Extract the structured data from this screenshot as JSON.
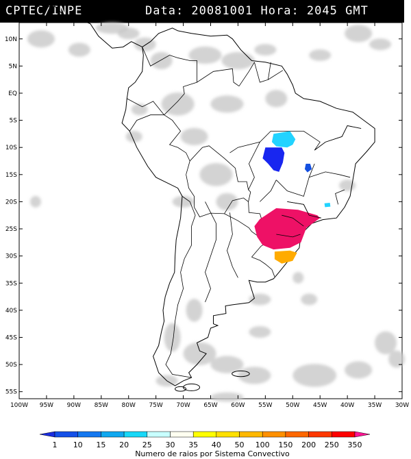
{
  "header": {
    "source": "CPTEC/INPE",
    "datetime": "Data: 20081001 Hora: 2045 GMT"
  },
  "map": {
    "lat_labels": [
      "10N",
      "5N",
      "EQ",
      "5S",
      "10S",
      "15S",
      "20S",
      "25S",
      "30S",
      "35S",
      "40S",
      "45S",
      "50S",
      "55S"
    ],
    "lon_labels": [
      "100W",
      "95W",
      "90W",
      "85W",
      "80W",
      "75W",
      "70W",
      "65W",
      "60W",
      "55W",
      "50W",
      "45W",
      "40W",
      "35W",
      "30W"
    ],
    "lat_range": [
      10,
      -55
    ],
    "lon_range": [
      -100,
      -30
    ],
    "storm_regions": [
      {
        "name": "light-blue-cell",
        "color": "#22d3ff",
        "points": [
          [
            -53.5,
            -7.5
          ],
          [
            -50.5,
            -7
          ],
          [
            -49.5,
            -8.5
          ],
          [
            -50,
            -9.5
          ],
          [
            -51,
            -10
          ],
          [
            -53,
            -9.8
          ],
          [
            -53.8,
            -9
          ]
        ]
      },
      {
        "name": "blue-cell",
        "color": "#1826f0",
        "points": [
          [
            -55,
            -10
          ],
          [
            -52,
            -10
          ],
          [
            -51.5,
            -11
          ],
          [
            -51.8,
            -12.8
          ],
          [
            -52.5,
            -14.5
          ],
          [
            -53.5,
            -14.2
          ],
          [
            -54.5,
            -13
          ],
          [
            -55.5,
            -12
          ]
        ]
      },
      {
        "name": "blue-cell-2",
        "color": "#1450e0",
        "points": [
          [
            -47.6,
            -13
          ],
          [
            -46.8,
            -13
          ],
          [
            -46.5,
            -14
          ],
          [
            -47.3,
            -14.6
          ],
          [
            -47.8,
            -14
          ]
        ]
      },
      {
        "name": "cyan-cell",
        "color": "#22d3ff",
        "points": [
          [
            -44.2,
            -20.3
          ],
          [
            -43.2,
            -20.2
          ],
          [
            -43.1,
            -20.9
          ],
          [
            -44.1,
            -21
          ]
        ]
      },
      {
        "name": "magenta-cluster",
        "color": "#ee1166",
        "points": [
          [
            -56,
            -23.2
          ],
          [
            -53,
            -21.2
          ],
          [
            -49,
            -21.5
          ],
          [
            -45.5,
            -22.5
          ],
          [
            -45,
            -23
          ],
          [
            -47.5,
            -24.8
          ],
          [
            -48.5,
            -27.5
          ],
          [
            -50.5,
            -28.5
          ],
          [
            -53.5,
            -28.8
          ],
          [
            -55.5,
            -28
          ],
          [
            -56.5,
            -26.5
          ],
          [
            -57,
            -24.5
          ]
        ]
      },
      {
        "name": "orange-cluster",
        "color": "#ffab00",
        "points": [
          [
            -53.3,
            -29.2
          ],
          [
            -50.5,
            -29
          ],
          [
            -49.2,
            -29.4
          ],
          [
            -50,
            -30.9
          ],
          [
            -52,
            -31.4
          ],
          [
            -53.3,
            -30.6
          ]
        ]
      }
    ]
  },
  "colorbar": {
    "values": [
      "1",
      "10",
      "15",
      "20",
      "25",
      "30",
      "35",
      "40",
      "50",
      "100",
      "150",
      "200",
      "250",
      "350"
    ],
    "colors": [
      "#1a2de0",
      "#1450e8",
      "#1478f0",
      "#10a8f0",
      "#18d8f8",
      "#c8ffff",
      "#fffff0",
      "#ffff00",
      "#ffe000",
      "#ffb800",
      "#ff9000",
      "#ff6800",
      "#ff3800",
      "#ff0000",
      "#ff1493"
    ],
    "title": "Numero de raios por Sistema Convectivo"
  }
}
